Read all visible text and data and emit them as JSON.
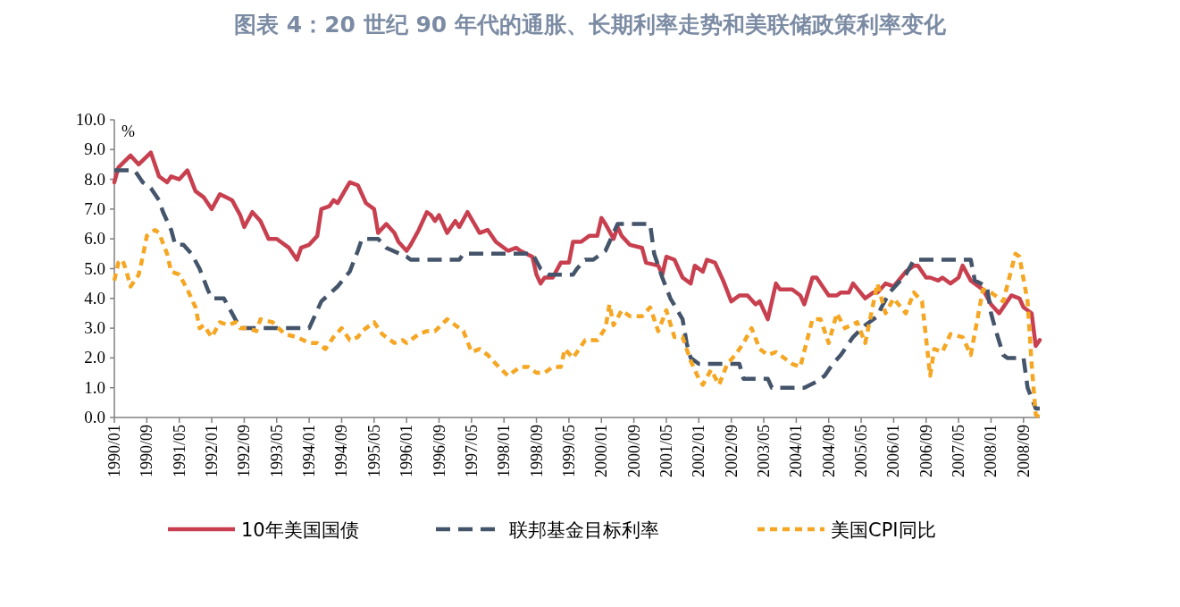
{
  "chart_data": {
    "type": "line",
    "title": "图表 4：20 世纪 90 年代的通胀、长期利率走势和美联储政策利率变化",
    "ylabel": "%",
    "legend": "bottom",
    "grid": false,
    "xlim": [
      "1990-01",
      "2009-01"
    ],
    "xticks": [
      {
        "value": "1990-01",
        "label": "1990/01"
      },
      {
        "value": "1990-09",
        "label": "1990/09"
      },
      {
        "value": "1991-05",
        "label": "1991/05"
      },
      {
        "value": "1992-01",
        "label": "1992/01"
      },
      {
        "value": "1992-09",
        "label": "1992/09"
      },
      {
        "value": "1993-05",
        "label": "1993/05"
      },
      {
        "value": "1994-01",
        "label": "1994/01"
      },
      {
        "value": "1994-09",
        "label": "1994/09"
      },
      {
        "value": "1995-05",
        "label": "1995/05"
      },
      {
        "value": "1996-01",
        "label": "1996/01"
      },
      {
        "value": "1996-09",
        "label": "1996/09"
      },
      {
        "value": "1997-05",
        "label": "1997/05"
      },
      {
        "value": "1998-01",
        "label": "1998/01"
      },
      {
        "value": "1998-09",
        "label": "1998/09"
      },
      {
        "value": "1999-05",
        "label": "1999/05"
      },
      {
        "value": "2000-01",
        "label": "2000/01"
      },
      {
        "value": "2000-09",
        "label": "2000/09"
      },
      {
        "value": "2001-05",
        "label": "2001/05"
      },
      {
        "value": "2002-01",
        "label": "2002/01"
      },
      {
        "value": "2002-09",
        "label": "2002/09"
      },
      {
        "value": "2003-05",
        "label": "2003/05"
      },
      {
        "value": "2004-01",
        "label": "2004/01"
      },
      {
        "value": "2004-09",
        "label": "2004/09"
      },
      {
        "value": "2005-05",
        "label": "2005/05"
      },
      {
        "value": "2006-01",
        "label": "2006/01"
      },
      {
        "value": "2006-09",
        "label": "2006/09"
      },
      {
        "value": "2007-05",
        "label": "2007/05"
      },
      {
        "value": "2008-01",
        "label": "2008/01"
      },
      {
        "value": "2008-09",
        "label": "2008/09"
      }
    ],
    "ylim": [
      0,
      10
    ],
    "yticks": [
      {
        "value": 0,
        "label": "0.0"
      },
      {
        "value": 1,
        "label": "1.0"
      },
      {
        "value": 2,
        "label": "2.0"
      },
      {
        "value": 3,
        "label": "3.0"
      },
      {
        "value": 4,
        "label": "4.0"
      },
      {
        "value": 5,
        "label": "5.0"
      },
      {
        "value": 6,
        "label": "6.0"
      },
      {
        "value": 7,
        "label": "7.0"
      },
      {
        "value": 8,
        "label": "8.0"
      },
      {
        "value": 9,
        "label": "9.0"
      },
      {
        "value": 10,
        "label": "10.0"
      }
    ],
    "series": [
      {
        "name": "10年美国国债",
        "color": "#c8404f",
        "line_style": "solid",
        "x": [
          "1990-01",
          "1990-02",
          "1990-05",
          "1990-07",
          "1990-10",
          "1990-12",
          "1991-02",
          "1991-03",
          "1991-05",
          "1991-07",
          "1991-09",
          "1991-11",
          "1992-01",
          "1992-03",
          "1992-06",
          "1992-08",
          "1992-09",
          "1992-11",
          "1993-01",
          "1993-03",
          "1993-05",
          "1993-08",
          "1993-10",
          "1993-11",
          "1994-01",
          "1994-03",
          "1994-04",
          "1994-06",
          "1994-07",
          "1994-08",
          "1994-11",
          "1995-01",
          "1995-03",
          "1995-05",
          "1995-06",
          "1995-08",
          "1995-10",
          "1995-11",
          "1996-01",
          "1996-02",
          "1996-04",
          "1996-06",
          "1996-07",
          "1996-08",
          "1996-09",
          "1996-11",
          "1997-01",
          "1997-02",
          "1997-04",
          "1997-07",
          "1997-09",
          "1997-11",
          "1998-01",
          "1998-02",
          "1998-04",
          "1998-05",
          "1998-08",
          "1998-09",
          "1998-10",
          "1998-11",
          "1999-01",
          "1999-03",
          "1999-05",
          "1999-06",
          "1999-08",
          "1999-10",
          "1999-12",
          "2000-01",
          "2000-02",
          "2000-04",
          "2000-05",
          "2000-06",
          "2000-08",
          "2000-11",
          "2000-12",
          "2001-03",
          "2001-04",
          "2001-05",
          "2001-07",
          "2001-09",
          "2001-11",
          "2001-12",
          "2002-02",
          "2002-03",
          "2002-05",
          "2002-07",
          "2002-09",
          "2002-11",
          "2003-01",
          "2003-03",
          "2003-04",
          "2003-06",
          "2003-08",
          "2003-09",
          "2003-12",
          "2004-02",
          "2004-03",
          "2004-05",
          "2004-06",
          "2004-09",
          "2004-11",
          "2004-12",
          "2005-02",
          "2005-03",
          "2005-06",
          "2005-08",
          "2005-09",
          "2005-11",
          "2006-01",
          "2006-04",
          "2006-06",
          "2006-07",
          "2006-09",
          "2006-10",
          "2006-12",
          "2007-01",
          "2007-03",
          "2007-05",
          "2007-06",
          "2007-08",
          "2007-11",
          "2008-01",
          "2008-03",
          "2008-06",
          "2008-08",
          "2008-09",
          "2008-11",
          "2008-12",
          "2009-01"
        ],
        "values": [
          7.9,
          8.4,
          8.8,
          8.5,
          8.9,
          8.1,
          7.9,
          8.1,
          8.0,
          8.3,
          7.6,
          7.4,
          7.0,
          7.5,
          7.3,
          6.8,
          6.4,
          6.9,
          6.6,
          6.0,
          6.0,
          5.7,
          5.3,
          5.7,
          5.8,
          6.1,
          7.0,
          7.1,
          7.3,
          7.2,
          7.9,
          7.8,
          7.2,
          7.0,
          6.2,
          6.5,
          6.2,
          5.9,
          5.6,
          5.8,
          6.3,
          6.9,
          6.8,
          6.6,
          6.8,
          6.2,
          6.6,
          6.4,
          6.9,
          6.2,
          6.3,
          5.9,
          5.7,
          5.6,
          5.7,
          5.6,
          5.4,
          4.8,
          4.5,
          4.7,
          4.7,
          5.2,
          5.2,
          5.9,
          5.9,
          6.1,
          6.1,
          6.7,
          6.5,
          6.0,
          6.4,
          6.1,
          5.8,
          5.7,
          5.2,
          5.1,
          4.8,
          5.4,
          5.3,
          4.7,
          4.5,
          5.1,
          4.9,
          5.3,
          5.2,
          4.6,
          3.9,
          4.1,
          4.1,
          3.8,
          3.9,
          3.3,
          4.5,
          4.3,
          4.3,
          4.1,
          3.8,
          4.7,
          4.7,
          4.1,
          4.1,
          4.2,
          4.2,
          4.5,
          4.0,
          4.2,
          4.2,
          4.5,
          4.4,
          4.9,
          5.1,
          5.1,
          4.7,
          4.7,
          4.6,
          4.7,
          4.5,
          4.7,
          5.1,
          4.6,
          4.3,
          3.8,
          3.5,
          4.1,
          4.0,
          3.7,
          3.5,
          2.4,
          2.6
        ]
      },
      {
        "name": "联邦基金目标利率",
        "color": "#44546a",
        "line_style": "dashed",
        "x": [
          "1990-01",
          "1990-06",
          "1990-08",
          "1990-10",
          "1990-12",
          "1991-01",
          "1991-03",
          "1991-04",
          "1991-06",
          "1991-08",
          "1991-10",
          "1991-12",
          "1992-01",
          "1992-04",
          "1992-06",
          "1992-08",
          "1994-01",
          "1994-04",
          "1994-08",
          "1994-11",
          "1995-01",
          "1995-02",
          "1995-06",
          "1995-08",
          "1996-01",
          "1996-02",
          "1997-02",
          "1997-03",
          "1998-08",
          "1998-10",
          "1998-12",
          "1999-06",
          "1999-07",
          "1999-09",
          "1999-11",
          "2000-02",
          "2000-05",
          "2001-01",
          "2001-02",
          "2001-04",
          "2001-06",
          "2001-09",
          "2001-10",
          "2001-11",
          "2002-01",
          "2002-11",
          "2002-12",
          "2003-06",
          "2003-07",
          "2004-03",
          "2004-06",
          "2004-08",
          "2004-10",
          "2004-12",
          "2005-03",
          "2005-06",
          "2005-09",
          "2005-10",
          "2005-12",
          "2006-02",
          "2006-04",
          "2006-06",
          "2007-08",
          "2007-09",
          "2007-12",
          "2008-01",
          "2008-02",
          "2008-04",
          "2008-05",
          "2008-09",
          "2008-10",
          "2008-12",
          "2009-01"
        ],
        "values": [
          8.3,
          8.3,
          7.9,
          7.7,
          7.3,
          6.9,
          6.3,
          5.8,
          5.8,
          5.5,
          5.0,
          4.3,
          4.0,
          4.0,
          3.5,
          3.0,
          3.0,
          3.9,
          4.4,
          4.9,
          5.6,
          6.0,
          6.0,
          5.7,
          5.4,
          5.3,
          5.3,
          5.5,
          5.5,
          5.0,
          4.8,
          4.8,
          5.0,
          5.3,
          5.3,
          5.6,
          6.5,
          6.5,
          5.5,
          4.7,
          4.0,
          3.3,
          2.5,
          2.0,
          1.8,
          1.8,
          1.3,
          1.3,
          1.0,
          1.0,
          1.2,
          1.4,
          1.8,
          2.1,
          2.7,
          3.1,
          3.4,
          3.7,
          4.2,
          4.5,
          4.8,
          5.3,
          5.3,
          4.6,
          4.4,
          3.5,
          3.0,
          2.1,
          2.0,
          2.0,
          1.0,
          0.3,
          0.3
        ]
      },
      {
        "name": "美国CPI同比",
        "color": "#f5a623",
        "line_style": "dotted",
        "x": [
          "1990-01",
          "1990-02",
          "1990-03",
          "1990-04",
          "1990-05",
          "1990-07",
          "1990-08",
          "1990-09",
          "1990-11",
          "1990-12",
          "1991-02",
          "1991-03",
          "1991-05",
          "1991-07",
          "1991-09",
          "1991-10",
          "1991-11",
          "1992-01",
          "1992-03",
          "1992-05",
          "1992-07",
          "1992-08",
          "1992-10",
          "1992-12",
          "1993-01",
          "1993-04",
          "1993-07",
          "1993-10",
          "1994-01",
          "1994-03",
          "1994-05",
          "1994-07",
          "1994-09",
          "1994-11",
          "1995-01",
          "1995-02",
          "1995-05",
          "1995-07",
          "1995-10",
          "1995-12",
          "1996-01",
          "1996-04",
          "1996-06",
          "1996-08",
          "1996-11",
          "1997-02",
          "1997-03",
          "1997-05",
          "1997-07",
          "1997-09",
          "1997-11",
          "1998-02",
          "1998-03",
          "1998-05",
          "1998-07",
          "1998-09",
          "1998-11",
          "1999-01",
          "1999-03",
          "1999-04",
          "1999-06",
          "1999-09",
          "1999-12",
          "2000-02",
          "2000-03",
          "2000-04",
          "2000-06",
          "2000-08",
          "2000-11",
          "2001-01",
          "2001-03",
          "2001-05",
          "2001-07",
          "2001-09",
          "2001-11",
          "2002-01",
          "2002-02",
          "2002-04",
          "2002-06",
          "2002-08",
          "2002-10",
          "2002-12",
          "2003-02",
          "2003-04",
          "2003-06",
          "2003-08",
          "2003-12",
          "2004-02",
          "2004-05",
          "2004-07",
          "2004-09",
          "2004-11",
          "2005-01",
          "2005-04",
          "2005-06",
          "2005-09",
          "2005-11",
          "2006-01",
          "2006-04",
          "2006-06",
          "2006-08",
          "2006-10",
          "2006-11",
          "2007-01",
          "2007-03",
          "2007-06",
          "2007-08",
          "2007-11",
          "2008-01",
          "2008-04",
          "2008-07",
          "2008-08",
          "2008-10",
          "2008-11",
          "2008-12",
          "2009-01"
        ],
        "values": [
          4.6,
          5.2,
          5.3,
          4.9,
          4.4,
          4.8,
          5.4,
          6.1,
          6.3,
          6.2,
          5.5,
          4.9,
          4.8,
          4.3,
          3.7,
          3.0,
          3.1,
          2.7,
          3.2,
          3.1,
          3.2,
          3.0,
          3.0,
          2.9,
          3.3,
          3.2,
          2.8,
          2.7,
          2.5,
          2.5,
          2.3,
          2.7,
          3.0,
          2.6,
          2.7,
          2.9,
          3.2,
          2.8,
          2.5,
          2.6,
          2.5,
          2.8,
          2.9,
          2.9,
          3.3,
          3.0,
          2.9,
          2.2,
          2.3,
          2.1,
          1.8,
          1.4,
          1.5,
          1.7,
          1.7,
          1.5,
          1.5,
          1.7,
          1.7,
          2.3,
          2.0,
          2.6,
          2.6,
          3.0,
          3.8,
          3.1,
          3.6,
          3.4,
          3.4,
          3.7,
          2.9,
          3.6,
          2.7,
          2.7,
          1.9,
          1.3,
          1.1,
          1.6,
          1.1,
          1.8,
          2.1,
          2.5,
          3.0,
          2.3,
          2.1,
          2.2,
          1.8,
          1.7,
          3.3,
          3.3,
          2.5,
          3.5,
          3.0,
          3.2,
          2.5,
          4.5,
          3.5,
          4.0,
          3.5,
          4.2,
          3.9,
          1.4,
          2.3,
          2.2,
          2.8,
          2.7,
          2.1,
          4.3,
          4.2,
          3.9,
          5.5,
          5.4,
          3.9,
          1.8,
          0.1,
          0.0
        ]
      }
    ]
  }
}
